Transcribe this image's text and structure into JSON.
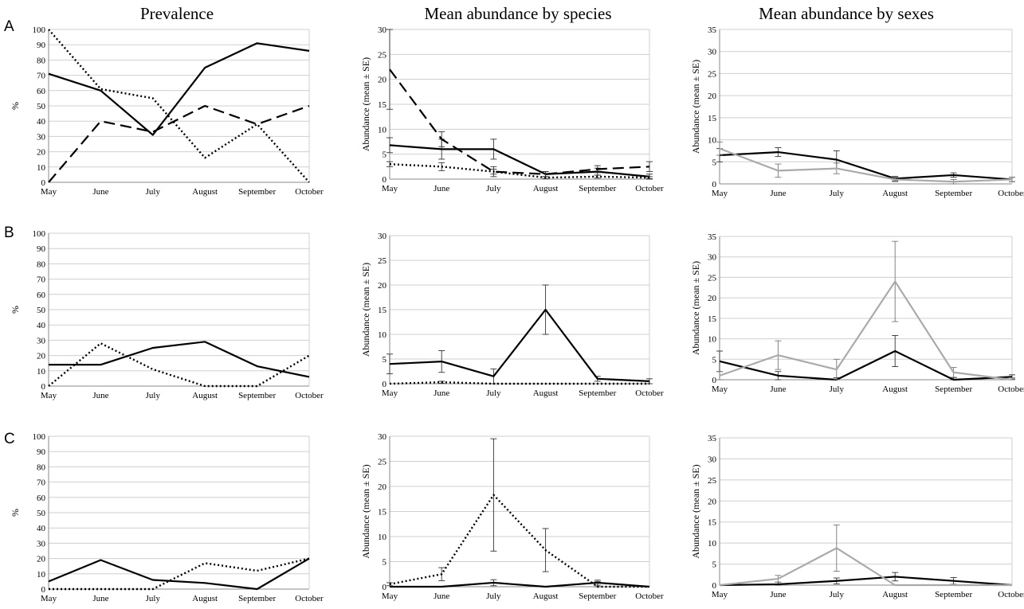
{
  "titles": [
    "Prevalence",
    "Mean abundance by species",
    "Mean abundance by sexes"
  ],
  "row_labels": [
    "A",
    "B",
    "C"
  ],
  "chart_data": [
    {
      "type": "line",
      "row": "A",
      "column": "Prevalence",
      "ylabel": "%",
      "ylim": [
        0,
        100
      ],
      "yticks": [
        0,
        10,
        20,
        30,
        40,
        50,
        60,
        70,
        80,
        90,
        100
      ],
      "categories": [
        "May",
        "June",
        "July",
        "August",
        "September",
        "October"
      ],
      "series": [
        {
          "style": "solid",
          "color": "#000000",
          "values": [
            71,
            60,
            31,
            75,
            91,
            86
          ]
        },
        {
          "style": "dashed",
          "color": "#000000",
          "values": [
            0,
            40,
            33,
            50,
            38,
            50
          ]
        },
        {
          "style": "dotted",
          "color": "#000000",
          "values": [
            100,
            61,
            55,
            16,
            38,
            0
          ]
        }
      ]
    },
    {
      "type": "line",
      "row": "A",
      "column": "Mean abundance by species",
      "ylabel": "Abundance (mean ± SE)",
      "ylim": [
        0,
        30
      ],
      "yticks": [
        0,
        5,
        10,
        15,
        20,
        25,
        30
      ],
      "categories": [
        "May",
        "June",
        "July",
        "August",
        "September",
        "October"
      ],
      "series": [
        {
          "style": "solid",
          "color": "#000000",
          "values": [
            6.8,
            6.0,
            6.0,
            1.0,
            1.5,
            0.5
          ],
          "errors": [
            1.5,
            2.0,
            2.0,
            0.5,
            0.7,
            0.5
          ]
        },
        {
          "style": "dashed",
          "color": "#000000",
          "values": [
            22,
            8.0,
            1.5,
            1.0,
            2.0,
            2.5
          ],
          "errors": [
            8.0,
            1.5,
            1.0,
            0.5,
            0.7,
            1.0
          ]
        },
        {
          "style": "dotted",
          "color": "#000000",
          "values": [
            3.0,
            2.5,
            1.5,
            0.3,
            0.5,
            0.3
          ],
          "errors": [
            0.5,
            0.8,
            0.5,
            0.2,
            0.3,
            0.2
          ]
        }
      ]
    },
    {
      "type": "line",
      "row": "A",
      "column": "Mean abundance by sexes",
      "ylabel": "Abundance (mean ± SE)",
      "ylim": [
        0,
        35
      ],
      "yticks": [
        0,
        5,
        10,
        15,
        20,
        25,
        30,
        35
      ],
      "categories": [
        "May",
        "June",
        "July",
        "August",
        "September",
        "October"
      ],
      "series": [
        {
          "style": "solid",
          "color": "#000000",
          "values": [
            6.5,
            7.2,
            5.5,
            1.2,
            2.0,
            1.0
          ],
          "errors": [
            1.5,
            1.0,
            2.0,
            0.5,
            0.5,
            0.5
          ]
        },
        {
          "style": "solid",
          "color": "#aaaaaa",
          "values": [
            8.0,
            3.0,
            3.5,
            1.0,
            0.5,
            1.0
          ],
          "errors": [
            1.5,
            1.5,
            1.2,
            0.5,
            0.5,
            0.5
          ]
        }
      ]
    },
    {
      "type": "line",
      "row": "B",
      "column": "Prevalence",
      "ylabel": "%",
      "ylim": [
        0,
        100
      ],
      "yticks": [
        0,
        10,
        20,
        30,
        40,
        50,
        60,
        70,
        80,
        90,
        100
      ],
      "categories": [
        "May",
        "June",
        "July",
        "August",
        "September",
        "October"
      ],
      "series": [
        {
          "style": "solid",
          "color": "#000000",
          "values": [
            14,
            14,
            25,
            29,
            13,
            6
          ]
        },
        {
          "style": "dotted",
          "color": "#000000",
          "values": [
            0,
            28,
            11,
            0,
            0,
            20
          ]
        }
      ]
    },
    {
      "type": "line",
      "row": "B",
      "column": "Mean abundance by species",
      "ylabel": "Abundance (mean ± SE)",
      "ylim": [
        0,
        30
      ],
      "yticks": [
        0,
        5,
        10,
        15,
        20,
        25,
        30
      ],
      "categories": [
        "May",
        "June",
        "July",
        "August",
        "September",
        "October"
      ],
      "series": [
        {
          "style": "solid",
          "color": "#000000",
          "values": [
            4.0,
            4.5,
            1.5,
            15,
            1.0,
            0.5
          ],
          "errors": [
            2.0,
            2.2,
            1.5,
            5.0,
            0.5,
            0.5
          ]
        },
        {
          "style": "dotted",
          "color": "#000000",
          "values": [
            0,
            0.3,
            0,
            0,
            0,
            0
          ],
          "errors": [
            0,
            0.2,
            0,
            0,
            0,
            0
          ]
        }
      ]
    },
    {
      "type": "line",
      "row": "B",
      "column": "Mean abundance by sexes",
      "ylabel": "Abundance (mean ± SE)",
      "ylim": [
        0,
        35
      ],
      "yticks": [
        0,
        5,
        10,
        15,
        20,
        25,
        30,
        35
      ],
      "categories": [
        "May",
        "June",
        "July",
        "August",
        "September",
        "October"
      ],
      "series": [
        {
          "style": "solid",
          "color": "#000000",
          "values": [
            4.5,
            1.0,
            0,
            7.0,
            0,
            0.7
          ],
          "errors": [
            2.5,
            1.0,
            0.5,
            3.8,
            0.5,
            0.5
          ]
        },
        {
          "style": "solid",
          "color": "#aaaaaa",
          "values": [
            1.0,
            6.0,
            2.5,
            24,
            1.8,
            0
          ],
          "errors": [
            1.0,
            3.5,
            2.5,
            9.8,
            1.2,
            0.5
          ]
        }
      ]
    },
    {
      "type": "line",
      "row": "C",
      "column": "Prevalence",
      "ylabel": "%",
      "ylim": [
        0,
        100
      ],
      "yticks": [
        0,
        10,
        20,
        30,
        40,
        50,
        60,
        70,
        80,
        90,
        100
      ],
      "categories": [
        "May",
        "June",
        "July",
        "August",
        "September",
        "October"
      ],
      "series": [
        {
          "style": "solid",
          "color": "#000000",
          "values": [
            5,
            19,
            6,
            4,
            0,
            20
          ]
        },
        {
          "style": "dotted",
          "color": "#000000",
          "values": [
            0,
            0,
            0,
            17,
            12,
            20
          ]
        }
      ]
    },
    {
      "type": "line",
      "row": "C",
      "column": "Mean abundance by species",
      "ylabel": "Abundance (mean ± SE)",
      "ylim": [
        0,
        30
      ],
      "yticks": [
        0,
        5,
        10,
        15,
        20,
        25,
        30
      ],
      "categories": [
        "May",
        "June",
        "July",
        "August",
        "September",
        "October"
      ],
      "series": [
        {
          "style": "solid",
          "color": "#000000",
          "values": [
            0,
            0,
            0.8,
            0,
            0.8,
            0
          ],
          "errors": [
            0,
            0,
            0.6,
            0,
            0.5,
            0
          ]
        },
        {
          "style": "dotted",
          "color": "#000000",
          "values": [
            0.5,
            2.5,
            18.3,
            7.3,
            0,
            0
          ],
          "errors": [
            0.3,
            1.3,
            11.2,
            4.3,
            1.0,
            0
          ]
        }
      ]
    },
    {
      "type": "line",
      "row": "C",
      "column": "Mean abundance by sexes",
      "ylabel": "Abundance (mean ± SE)",
      "ylim": [
        0,
        35
      ],
      "yticks": [
        0,
        5,
        10,
        15,
        20,
        25,
        30,
        35
      ],
      "categories": [
        "May",
        "June",
        "July",
        "August",
        "September",
        "October"
      ],
      "series": [
        {
          "style": "solid",
          "color": "#000000",
          "values": [
            0,
            0.2,
            1.0,
            2.0,
            1.0,
            0
          ],
          "errors": [
            0,
            0.5,
            0.7,
            1.0,
            0.8,
            0
          ]
        },
        {
          "style": "solid",
          "color": "#aaaaaa",
          "values": [
            0,
            1.5,
            8.8,
            0,
            0,
            0
          ],
          "errors": [
            0,
            0.8,
            5.5,
            0,
            0,
            0
          ]
        }
      ]
    }
  ]
}
